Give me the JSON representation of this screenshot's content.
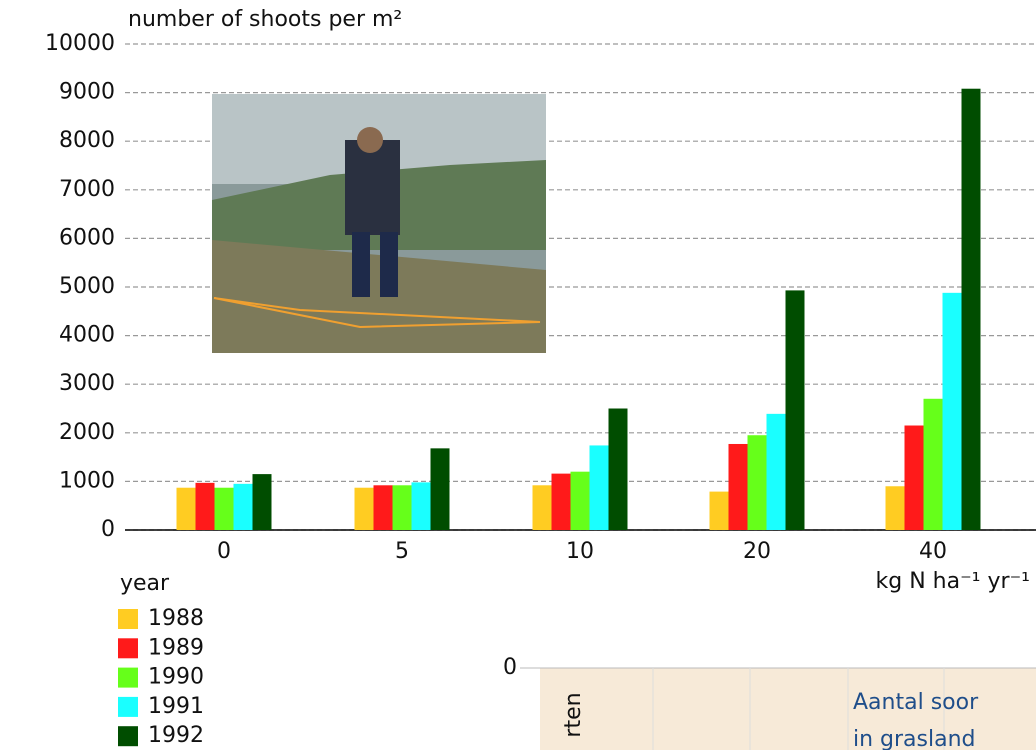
{
  "chart_data": {
    "type": "bar",
    "title": "number of shoots per m²",
    "x_label": "kg N ha⁻¹ yr⁻¹",
    "legend_title": "year",
    "categories": [
      "0",
      "5",
      "10",
      "20",
      "40"
    ],
    "series": [
      {
        "name": "1988",
        "color": "#ffcc22",
        "values": [
          870,
          870,
          920,
          790,
          900
        ]
      },
      {
        "name": "1989",
        "color": "#ff1a1a",
        "values": [
          970,
          920,
          1160,
          1770,
          2150
        ]
      },
      {
        "name": "1990",
        "color": "#66ff1a",
        "values": [
          870,
          920,
          1200,
          1950,
          2700
        ]
      },
      {
        "name": "1991",
        "color": "#1affff",
        "values": [
          950,
          980,
          1740,
          2390,
          4880
        ]
      },
      {
        "name": "1992",
        "color": "#004d00",
        "values": [
          1150,
          1680,
          2500,
          4930,
          9080
        ]
      }
    ],
    "ylim": [
      0,
      10000
    ],
    "yticks": [
      0,
      1000,
      2000,
      3000,
      4000,
      5000,
      6000,
      7000,
      8000,
      9000,
      10000
    ],
    "grid": true
  },
  "inset": {
    "axis_label": "0",
    "vertical_text": "rten",
    "lines": [
      "Aantal soor",
      "in grasland"
    ]
  }
}
